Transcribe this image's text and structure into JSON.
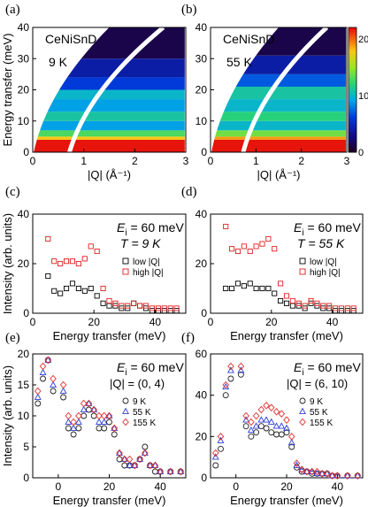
{
  "chart_data": [
    {
      "id": "a",
      "panel_label": "(a)",
      "type": "heatmap",
      "sample_label": "CeNiSnD",
      "temperature_label": "9 K",
      "xlabel": "|Q| (Å⁻¹)",
      "ylabel": "Energy transfer (meV)",
      "xlim": [
        0,
        3
      ],
      "ylim": [
        0,
        40
      ],
      "x_ticks": [
        0,
        1,
        2,
        3
      ],
      "y_ticks": [
        0,
        10,
        20,
        30,
        40
      ],
      "bands": [
        {
          "e_max": 4,
          "level": 22
        },
        {
          "e_max": 5,
          "level": 18
        },
        {
          "e_max": 7,
          "level": 13
        },
        {
          "e_max": 10,
          "level": 9
        },
        {
          "e_max": 13,
          "level": 11
        },
        {
          "e_max": 17,
          "level": 9
        },
        {
          "e_max": 20,
          "level": 10
        },
        {
          "e_max": 24,
          "level": 6
        },
        {
          "e_max": 30,
          "level": 4
        },
        {
          "e_max": 40,
          "level": 1
        }
      ]
    },
    {
      "id": "b",
      "panel_label": "(b)",
      "type": "heatmap",
      "sample_label": "CeNiSnD",
      "temperature_label": "55 K",
      "xlabel": "|Q| (Å⁻¹)",
      "xlim": [
        0,
        3
      ],
      "ylim": [
        0,
        40
      ],
      "x_ticks": [
        0,
        1,
        2,
        3
      ],
      "y_ticks": [
        0,
        10,
        20,
        30,
        40
      ],
      "colorbar_ticks": [
        0,
        10,
        20
      ],
      "colorbar_range": [
        0,
        22
      ],
      "bands": [
        {
          "e_max": 4,
          "level": 22
        },
        {
          "e_max": 5,
          "level": 19
        },
        {
          "e_max": 7,
          "level": 14
        },
        {
          "e_max": 10,
          "level": 10
        },
        {
          "e_max": 13,
          "level": 12
        },
        {
          "e_max": 17,
          "level": 10
        },
        {
          "e_max": 21,
          "level": 11
        },
        {
          "e_max": 25,
          "level": 7
        },
        {
          "e_max": 31,
          "level": 4
        },
        {
          "e_max": 40,
          "level": 1
        }
      ]
    },
    {
      "id": "c",
      "panel_label": "(c)",
      "type": "scatter",
      "ei_label": "E",
      "ei_sub": "i",
      "ei_value": " = 60 meV",
      "temp_label": "T = 9 K",
      "ylabel": "Intensity (arb. units)",
      "xlabel": "Energy transfer (meV)",
      "xlim": [
        0,
        50
      ],
      "ylim": [
        0,
        40
      ],
      "x_ticks": [
        0,
        20,
        40
      ],
      "y_ticks": [
        0,
        20,
        40
      ],
      "series": [
        {
          "name": "low |Q|",
          "color": "#000000",
          "marker": "square",
          "x": [
            5,
            7,
            9,
            11,
            13,
            15,
            17,
            19,
            21,
            23,
            25,
            27,
            29,
            31,
            33,
            35,
            37,
            39,
            41,
            43,
            45,
            47
          ],
          "y": [
            15,
            9,
            8,
            10,
            12,
            10,
            9,
            10,
            7,
            4,
            3,
            3,
            2,
            2,
            4,
            3,
            2,
            1,
            1,
            1,
            1,
            1
          ]
        },
        {
          "name": "high |Q|",
          "color": "#e02020",
          "marker": "square",
          "x": [
            5,
            7,
            9,
            11,
            13,
            15,
            17,
            19,
            21,
            23,
            25,
            27,
            29,
            31,
            33,
            35,
            37,
            39,
            41,
            43,
            45,
            47
          ],
          "y": [
            30,
            21,
            20,
            21,
            21,
            20,
            22,
            27,
            25,
            10,
            5,
            4,
            3,
            3,
            4,
            3,
            3,
            2,
            2,
            2,
            2,
            2
          ]
        }
      ]
    },
    {
      "id": "d",
      "panel_label": "(d)",
      "type": "scatter",
      "ei_label": "E",
      "ei_sub": "i",
      "ei_value": " = 60 meV",
      "temp_label": "T = 55 K",
      "xlabel": "Energy transfer (meV)",
      "xlim": [
        0,
        50
      ],
      "ylim": [
        0,
        40
      ],
      "x_ticks": [
        0,
        20,
        40
      ],
      "y_ticks": [
        0,
        20,
        40
      ],
      "series": [
        {
          "name": "low |Q|",
          "color": "#000000",
          "marker": "square",
          "x": [
            5,
            7,
            9,
            11,
            13,
            15,
            17,
            19,
            21,
            23,
            25,
            27,
            29,
            31,
            33,
            35,
            37,
            39,
            41,
            43,
            45,
            47
          ],
          "y": [
            10,
            10,
            12,
            11,
            12,
            10,
            10,
            10,
            8,
            5,
            4,
            3,
            3,
            2,
            4,
            3,
            2,
            2,
            1,
            1,
            1,
            1
          ]
        },
        {
          "name": "high |Q|",
          "color": "#e02020",
          "marker": "square",
          "x": [
            5,
            7,
            9,
            11,
            13,
            15,
            17,
            19,
            21,
            23,
            25,
            27,
            29,
            31,
            33,
            35,
            37,
            39,
            41,
            43,
            45,
            47
          ],
          "y": [
            35,
            26,
            25,
            27,
            25,
            27,
            28,
            30,
            26,
            12,
            7,
            5,
            4,
            3,
            5,
            4,
            3,
            3,
            2,
            2,
            2,
            2
          ]
        }
      ]
    },
    {
      "id": "e",
      "panel_label": "(e)",
      "type": "scatter",
      "ei_label": "E",
      "ei_sub": "i",
      "ei_value": " = 60 meV",
      "q_label": "|Q| = (0, 4)",
      "ylabel": "Intensity (arb. units)",
      "xlabel": "Energy transfer (meV)",
      "xlim": [
        -10,
        50
      ],
      "ylim": [
        0,
        20
      ],
      "x_ticks": [
        0,
        20,
        40
      ],
      "y_ticks": [
        0,
        5,
        10,
        15,
        20
      ],
      "series": [
        {
          "name": "9 K",
          "color": "#222222",
          "marker": "circle",
          "x": [
            -8,
            -6,
            -4,
            -2,
            2,
            4,
            6,
            8,
            10,
            12,
            14,
            16,
            18,
            20,
            22,
            24,
            26,
            28,
            30,
            32,
            34,
            36,
            38,
            40,
            44,
            48
          ],
          "y": [
            12,
            16,
            19,
            14,
            13,
            8,
            7,
            8,
            10,
            11,
            10,
            8,
            8,
            9,
            7,
            3,
            2,
            2,
            2,
            3,
            5,
            2,
            1,
            1,
            1,
            1
          ]
        },
        {
          "name": "55 K",
          "color": "#2c3fd6",
          "marker": "triangle",
          "x": [
            -8,
            -6,
            -4,
            -2,
            2,
            4,
            6,
            8,
            10,
            12,
            14,
            16,
            18,
            20,
            22,
            24,
            26,
            28,
            30,
            32,
            34,
            36,
            38,
            40,
            44,
            48
          ],
          "y": [
            13,
            17,
            19,
            15,
            14,
            9,
            8,
            9,
            11,
            12,
            11,
            9,
            9,
            10,
            8,
            4,
            3,
            2,
            2,
            3,
            4,
            2,
            2,
            1,
            1,
            1
          ]
        },
        {
          "name": "155 K",
          "color": "#e03030",
          "marker": "diamond",
          "x": [
            -8,
            -6,
            -4,
            -2,
            2,
            4,
            6,
            8,
            10,
            12,
            14,
            16,
            18,
            20,
            22,
            24,
            26,
            28,
            30,
            32,
            34,
            36,
            38,
            40,
            44,
            48
          ],
          "y": [
            14,
            18,
            19,
            16,
            15,
            10,
            9,
            10,
            12,
            12,
            11,
            10,
            10,
            10,
            8,
            4,
            3,
            3,
            2,
            3,
            4,
            2,
            2,
            1,
            1,
            1
          ]
        }
      ]
    },
    {
      "id": "f",
      "panel_label": "(f)",
      "type": "scatter",
      "ei_label": "E",
      "ei_sub": "i",
      "ei_value": " = 60 meV",
      "q_label": "|Q| = (6, 10)",
      "xlabel": "Energy transfer (meV)",
      "xlim": [
        -10,
        50
      ],
      "ylim": [
        0,
        60
      ],
      "x_ticks": [
        0,
        20,
        40
      ],
      "y_ticks": [
        0,
        20,
        40,
        60
      ],
      "series": [
        {
          "name": "9 K",
          "color": "#222222",
          "marker": "circle",
          "x": [
            -8,
            -6,
            -4,
            -2,
            2,
            4,
            6,
            8,
            10,
            12,
            14,
            16,
            18,
            20,
            22,
            24,
            26,
            28,
            30,
            32,
            34,
            36,
            38,
            40,
            44,
            48
          ],
          "y": [
            6,
            14,
            40,
            48,
            50,
            25,
            20,
            22,
            25,
            24,
            22,
            21,
            21,
            22,
            15,
            5,
            3,
            3,
            2,
            2,
            2,
            2,
            1,
            1,
            1,
            1
          ]
        },
        {
          "name": "55 K",
          "color": "#2c3fd6",
          "marker": "triangle",
          "x": [
            -8,
            -6,
            -4,
            -2,
            2,
            4,
            6,
            8,
            10,
            12,
            14,
            16,
            18,
            20,
            22,
            24,
            26,
            28,
            30,
            32,
            34,
            36,
            38,
            40,
            44,
            48
          ],
          "y": [
            10,
            18,
            44,
            52,
            52,
            28,
            23,
            25,
            28,
            28,
            27,
            25,
            25,
            24,
            17,
            6,
            4,
            3,
            3,
            2,
            2,
            2,
            1,
            1,
            1,
            1
          ]
        },
        {
          "name": "155 K",
          "color": "#e03030",
          "marker": "diamond",
          "x": [
            -8,
            -6,
            -4,
            -2,
            2,
            4,
            6,
            8,
            10,
            12,
            14,
            16,
            18,
            20,
            22,
            24,
            26,
            28,
            30,
            32,
            34,
            36,
            38,
            40,
            44,
            48
          ],
          "y": [
            12,
            20,
            45,
            54,
            54,
            30,
            27,
            30,
            33,
            35,
            34,
            32,
            31,
            28,
            20,
            7,
            4,
            3,
            3,
            3,
            2,
            2,
            1,
            1,
            1,
            1
          ]
        }
      ]
    }
  ]
}
